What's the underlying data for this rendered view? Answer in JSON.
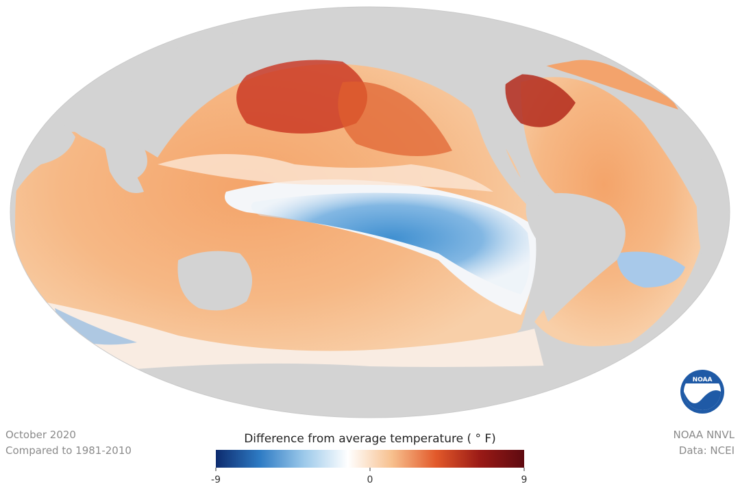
{
  "caption": {
    "date": "October 2020",
    "baseline": "Compared to 1981-2010"
  },
  "credits": {
    "producer": "NOAA NNVL",
    "source": "Data: NCEI"
  },
  "logo": {
    "label": "NOAA"
  },
  "colorbar": {
    "title": "Difference from average temperature ( ° F)",
    "lim": [
      -9,
      9
    ],
    "ticks": [
      -9,
      0,
      9
    ],
    "colors": [
      "#0d2b6e",
      "#2e7bc4",
      "#9cc9ea",
      "#ffffff",
      "#f7c08e",
      "#e2592a",
      "#9a1a16",
      "#5e0a10"
    ]
  }
}
